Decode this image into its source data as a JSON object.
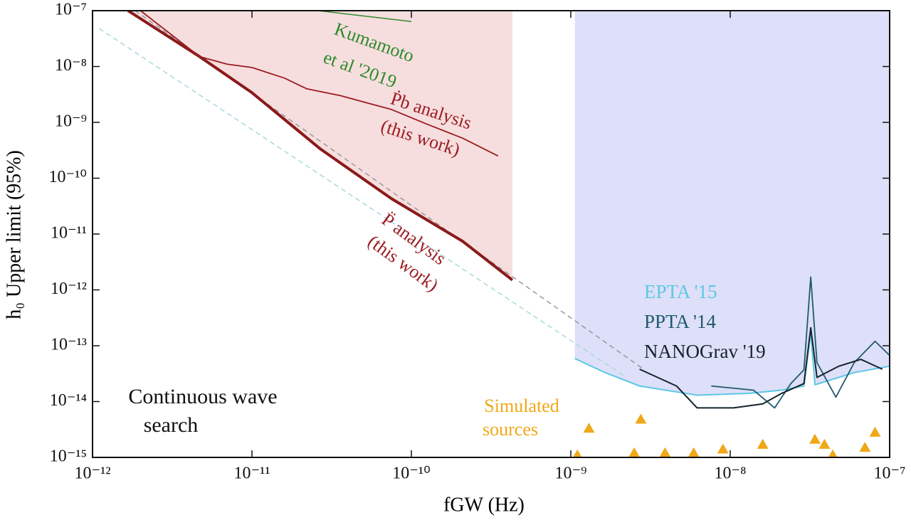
{
  "chart_data": {
    "type": "line",
    "xscale": "log",
    "yscale": "log",
    "xlabel": "fGW (Hz)",
    "ylabel": "h₀ Upper limit (95%)",
    "xlim": [
      1e-12,
      1e-07
    ],
    "ylim": [
      1e-15,
      1e-07
    ],
    "xticks": [
      {
        "value": 1e-12,
        "label": "10⁻¹²"
      },
      {
        "value": 1e-11,
        "label": "10⁻¹¹"
      },
      {
        "value": 1e-10,
        "label": "10⁻¹⁰"
      },
      {
        "value": 1e-09,
        "label": "10⁻⁹"
      },
      {
        "value": 1e-08,
        "label": "10⁻⁸"
      },
      {
        "value": 1e-07,
        "label": "10⁻⁷"
      }
    ],
    "yticks": [
      {
        "value": 1e-15,
        "label": "10⁻¹⁵"
      },
      {
        "value": 1e-14,
        "label": "10⁻¹⁴"
      },
      {
        "value": 1e-13,
        "label": "10⁻¹³"
      },
      {
        "value": 1e-12,
        "label": "10⁻¹²"
      },
      {
        "value": 1e-11,
        "label": "10⁻¹¹"
      },
      {
        "value": 1e-10,
        "label": "10⁻¹⁰"
      },
      {
        "value": 1e-09,
        "label": "10⁻⁹"
      },
      {
        "value": 1e-08,
        "label": "10⁻⁸"
      },
      {
        "value": 1e-07,
        "label": "10⁻⁷"
      }
    ],
    "series": [
      {
        "color": "#999999",
        "dash": true,
        "x": [
          1.85e-12,
          2.9e-09
        ],
        "values": [
          1e-07,
          3.7e-14
        ]
      },
      {
        "color": "#a8d8dc",
        "dash": true,
        "x": [
          1.1e-12,
          2.2e-09
        ],
        "values": [
          4.8e-08,
          2.8e-14
        ]
      },
      {
        "color": "#2e8b2e",
        "fill": "#c2ccb0",
        "x": [
          2.6e-11,
          1e-10
        ],
        "values": [
          1e-07,
          6.4e-08
        ]
      },
      {
        "color": "#8b1a1a",
        "fill": "#f7dede",
        "width": 4,
        "x": [
          1.67e-12,
          4.7e-12,
          1e-11,
          2.7e-11,
          7.5e-11,
          2.1e-10,
          4.3e-10
        ],
        "values": [
          1e-07,
          1.5e-08,
          3.4e-09,
          3.3e-10,
          4.3e-11,
          7.4e-12,
          1.5e-12
        ]
      },
      {
        "color": "#9b1c22",
        "width": 1.8,
        "x": [
          2e-12,
          4.7e-12,
          7e-12,
          1e-11,
          1.6e-11,
          2.2e-11,
          3.6e-11,
          7.5e-11,
          1.25e-10,
          2.1e-10,
          3.5e-10
        ],
        "values": [
          1e-07,
          1.5e-08,
          1.1e-08,
          9.6e-09,
          6.2e-09,
          4e-09,
          3e-09,
          1.7e-09,
          9.3e-10,
          5.2e-10,
          2.5e-10
        ]
      },
      {
        "name": "EPTA '15",
        "color": "#5cc8e6",
        "fill": "#dedff8",
        "width": 2,
        "x": [
          1.06e-09,
          1.6e-09,
          2.7e-09,
          6.2e-09,
          1.3e-08,
          2.1e-08,
          2.9e-08,
          3.2e-08,
          3.4e-08,
          6e-08,
          1e-07
        ],
        "values": [
          5.9e-14,
          3.4e-14,
          1.9e-14,
          1.3e-14,
          1.4e-14,
          1.6e-14,
          1.9e-14,
          1.7e-13,
          2e-14,
          3.3e-14,
          4.3e-14
        ]
      },
      {
        "name": "PPTA '14",
        "color": "#1f5a6e",
        "width": 1.8,
        "x": [
          7.6e-09,
          1.4e-08,
          1.9e-08,
          2.4e-08,
          2.9e-08,
          3.2e-08,
          3.5e-08,
          4.6e-08,
          6e-08,
          8.1e-08,
          1e-07
        ],
        "values": [
          1.9e-14,
          1.6e-14,
          7.7e-15,
          2.1e-14,
          3.7e-14,
          1.7e-12,
          5e-14,
          1.2e-14,
          5e-14,
          1.2e-13,
          6.7e-14
        ]
      },
      {
        "name": "NANOGrav '19",
        "color": "#14242c",
        "width": 2,
        "x": [
          2.7e-09,
          4.6e-09,
          6.2e-09,
          1.05e-08,
          1.6e-08,
          2.1e-08,
          2.9e-08,
          3.2e-08,
          3.5e-08,
          4.8e-08,
          6.6e-08,
          9e-08
        ],
        "values": [
          3.8e-14,
          1.9e-14,
          7.7e-15,
          7.7e-15,
          9.1e-15,
          1.4e-14,
          2.1e-14,
          2.1e-13,
          2.7e-14,
          4.3e-14,
          5.7e-14,
          3.8e-14
        ]
      },
      {
        "marker": "triangle",
        "color": "#f0a818",
        "x": [
          1.1e-09,
          1.3e-09,
          2.5e-09,
          2.75e-09,
          3.9e-09,
          5.9e-09,
          9e-09,
          1.6e-08,
          3.4e-08,
          3.9e-08,
          4.4e-08,
          7e-08,
          8.1e-08
        ],
        "values": [
          1.1e-15,
          3.3e-15,
          1.2e-15,
          4.8e-15,
          1.2e-15,
          1.2e-15,
          1.4e-15,
          1.7e-15,
          2.1e-15,
          1.7e-15,
          1.1e-15,
          1.5e-15,
          2.8e-15
        ]
      }
    ],
    "annotations": [
      {
        "text": "Kumamoto",
        "color": "#2e8b2e"
      },
      {
        "text": "et al '2019",
        "color": "#2e8b2e"
      },
      {
        "text": "Ṗb analysis",
        "color": "#9b1c22"
      },
      {
        "text": "(this work)",
        "color": "#9b1c22"
      },
      {
        "text": "P̈ analysis",
        "color": "#9b1c22"
      },
      {
        "text": "(this work)",
        "color": "#9b1c22"
      },
      {
        "text": "Continuous wave",
        "color": "#111111"
      },
      {
        "text": "search",
        "color": "#111111"
      },
      {
        "text": "Simulated",
        "color": "#f0a818"
      },
      {
        "text": "sources",
        "color": "#f0a818"
      }
    ]
  }
}
